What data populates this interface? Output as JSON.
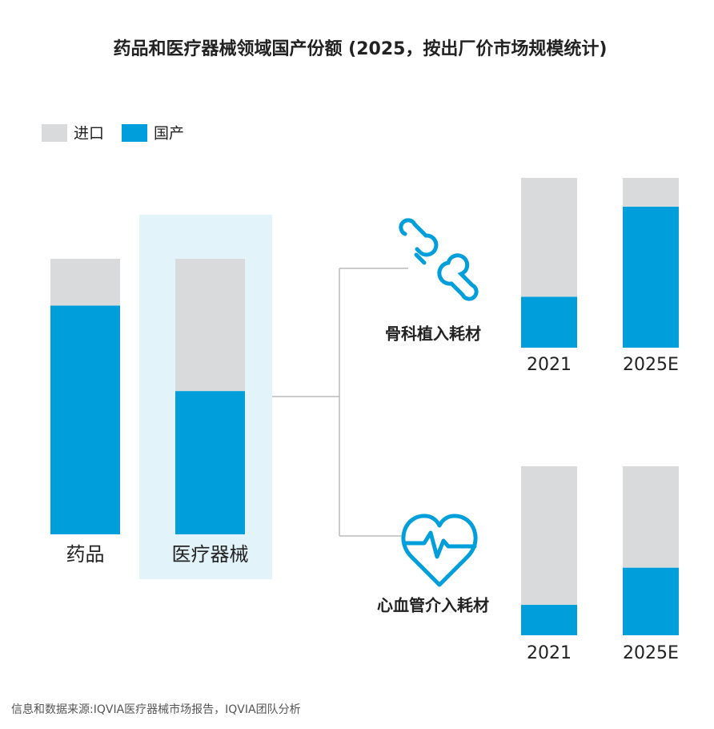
{
  "chart_data": [
    {
      "type": "bar",
      "stacked": true,
      "title": "药品和医疗器械领域国产份额 (2025，按出厂价市场规模统计)",
      "categories": [
        "药品",
        "医疗器械"
      ],
      "series": [
        {
          "name": "进口",
          "color": "#d9dadb",
          "values": [
            17,
            48
          ]
        },
        {
          "name": "国产",
          "color": "#009fdb",
          "values": [
            83,
            52
          ]
        }
      ],
      "ylim": [
        0,
        100
      ],
      "highlight_category": "医疗器械",
      "legend": "top-left",
      "note": "信息和数据来源:IQVIA医疗器械市场报告，IQVIA团队分析"
    },
    {
      "type": "bar",
      "stacked": true,
      "title": "骨科植入耗材",
      "categories": [
        "2021",
        "2025E"
      ],
      "series": [
        {
          "color": "#d9dadb",
          "values": [
            70,
            17
          ]
        },
        {
          "color": "#009fdb",
          "values": [
            30,
            83
          ]
        }
      ],
      "ylim": [
        0,
        100
      ]
    },
    {
      "type": "bar",
      "stacked": true,
      "title": "心血管介入耗材",
      "categories": [
        "2021",
        "2025E"
      ],
      "series": [
        {
          "color": "#d9dadb",
          "values": [
            82,
            60
          ]
        },
        {
          "color": "#009fdb",
          "values": [
            18,
            40
          ]
        }
      ],
      "ylim": [
        0,
        100
      ]
    }
  ]
}
